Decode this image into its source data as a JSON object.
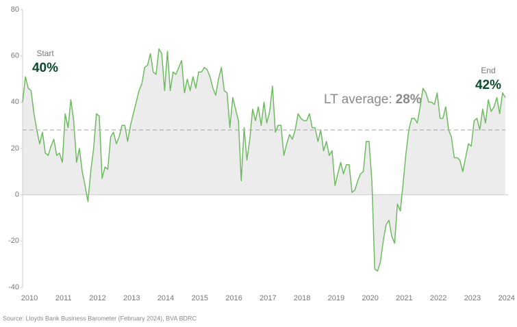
{
  "chart_data": {
    "type": "line",
    "categories": [
      "2010",
      null,
      null,
      null,
      null,
      null,
      null,
      null,
      null,
      null,
      null,
      null,
      "2011",
      null,
      null,
      null,
      null,
      null,
      null,
      null,
      null,
      null,
      null,
      null,
      "2012",
      null,
      null,
      null,
      null,
      null,
      null,
      null,
      null,
      null,
      null,
      null,
      "2013",
      null,
      null,
      null,
      null,
      null,
      null,
      null,
      null,
      null,
      null,
      null,
      "2014",
      null,
      null,
      null,
      null,
      null,
      null,
      null,
      null,
      null,
      null,
      null,
      "2015",
      null,
      null,
      null,
      null,
      null,
      null,
      null,
      null,
      null,
      null,
      null,
      "2016",
      null,
      null,
      null,
      null,
      null,
      null,
      null,
      null,
      null,
      null,
      null,
      "2017",
      null,
      null,
      null,
      null,
      null,
      null,
      null,
      null,
      null,
      null,
      null,
      "2018",
      null,
      null,
      null,
      null,
      null,
      null,
      null,
      null,
      null,
      null,
      null,
      "2019",
      null,
      null,
      null,
      null,
      null,
      null,
      null,
      null,
      null,
      null,
      null,
      "2020",
      null,
      null,
      null,
      null,
      null,
      null,
      null,
      null,
      null,
      null,
      null,
      "2021",
      null,
      null,
      null,
      null,
      null,
      null,
      null,
      null,
      null,
      null,
      null,
      "2022",
      null,
      null,
      null,
      null,
      null,
      null,
      null,
      null,
      null,
      null,
      null,
      "2023",
      null,
      null,
      null,
      null,
      null,
      null,
      null,
      null,
      null,
      null,
      null,
      "2024",
      null,
      null
    ],
    "series": [
      {
        "color": "#6dbb5f",
        "values": [
          40,
          51,
          46,
          45,
          35,
          28,
          22,
          27,
          18,
          17,
          21,
          24,
          17,
          18,
          14,
          35,
          29,
          41,
          32,
          14,
          20,
          10,
          4,
          -3,
          10,
          20,
          35,
          34,
          7,
          12,
          11,
          25,
          27,
          22,
          25,
          30,
          30,
          23,
          30,
          35,
          40,
          45,
          48,
          55,
          56,
          61,
          53,
          52,
          63,
          61,
          45,
          62,
          45,
          53,
          52,
          55,
          58,
          44,
          50,
          45,
          51,
          46,
          53,
          53,
          55,
          54,
          51,
          46,
          43,
          50,
          55,
          45,
          44,
          29,
          42,
          37,
          32,
          6,
          29,
          15,
          24,
          37,
          32,
          38,
          30,
          40,
          31,
          36,
          47,
          27,
          30,
          30,
          17,
          22,
          26,
          24,
          28,
          35,
          33,
          32,
          32,
          35,
          29,
          29,
          23,
          28,
          19,
          23,
          17,
          19,
          4,
          9,
          14,
          9,
          13,
          13,
          1,
          2,
          6,
          9,
          10,
          23,
          23,
          6,
          -32,
          -33,
          -29,
          -20,
          -13,
          -11,
          -18,
          -21,
          -4,
          -7,
          5,
          18,
          28,
          33,
          33,
          31,
          38,
          46,
          44,
          40,
          40,
          39,
          44,
          33,
          33,
          38,
          28,
          25,
          16,
          16,
          15,
          10,
          16,
          22,
          21,
          32,
          33,
          28,
          37,
          31,
          41,
          36,
          38,
          42,
          35,
          44,
          42
        ]
      }
    ],
    "area_color": "#ececec",
    "ylim": [
      -40,
      80
    ],
    "yticks": [
      -40,
      -20,
      0,
      20,
      40,
      60,
      80
    ],
    "lt_average": {
      "label": "LT average:",
      "value": 28,
      "value_label": "28%"
    },
    "start_annotation": {
      "title": "Start",
      "value_label": "40%"
    },
    "end_annotation": {
      "title": "End",
      "value_label": "42%"
    },
    "source": "Source: Lloyds Bank Business Barometer (February 2024), BVA BDRC"
  }
}
